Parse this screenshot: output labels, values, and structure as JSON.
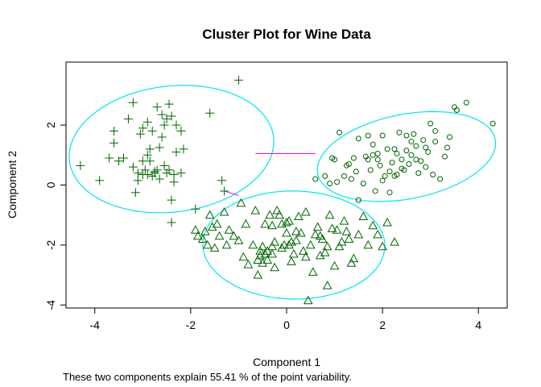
{
  "chart_data": {
    "type": "scatter",
    "title": "Cluster Plot for Wine Data",
    "xlabel": "Component 1",
    "ylabel": "Component 2",
    "footnote": "These two components explain 55.41 % of the point variability.",
    "xlim": [
      -4.6,
      4.6
    ],
    "ylim": [
      -4.1,
      4.1
    ],
    "x_ticks": [
      -4,
      -2,
      0,
      2,
      4
    ],
    "y_ticks": [
      -4,
      -2,
      0,
      2
    ],
    "grid": false,
    "legend": "none",
    "colors": {
      "points": "#006400",
      "ellipse": "#00e5ee",
      "connector": "#ff00ff"
    },
    "ellipses": [
      {
        "cx": -2.4,
        "cy": 1.2,
        "rx": 2.25,
        "ry": 2.0,
        "angle_deg": 44
      },
      {
        "cx": 2.5,
        "cy": 0.95,
        "rx": 1.97,
        "ry": 1.35,
        "angle_deg": 27
      },
      {
        "cx": 0.15,
        "cy": -2.0,
        "rx": 1.9,
        "ry": 1.8,
        "angle_deg": -8
      }
    ],
    "connectors": [
      {
        "x": [
          -0.65,
          0.6
        ],
        "y": [
          1.05,
          1.05
        ]
      },
      {
        "x": [
          -1.3,
          -1.0
        ],
        "y": [
          -0.2,
          -0.35
        ]
      }
    ],
    "series": [
      {
        "marker": "plus",
        "x": [
          -1.0,
          -4.3,
          -3.9,
          -3.7,
          -3.6,
          -3.6,
          -3.5,
          -3.4,
          -3.3,
          -3.2,
          -3.2,
          -3.1,
          -3.1,
          -3.05,
          -3.0,
          -3.0,
          -2.95,
          -2.9,
          -2.9,
          -2.85,
          -2.85,
          -2.8,
          -2.8,
          -2.75,
          -2.7,
          -2.7,
          -2.65,
          -2.65,
          -2.6,
          -2.55,
          -2.55,
          -2.5,
          -2.5,
          -2.45,
          -2.45,
          -2.4,
          -2.4,
          -2.4,
          -2.35,
          -2.35,
          -2.3,
          -2.3,
          -2.2,
          -2.2,
          -2.15,
          -1.9,
          -1.6,
          -1.35,
          -1.3,
          -2.9,
          -3.0,
          -3.15,
          -2.6,
          -2.75
        ],
        "y": [
          3.5,
          0.65,
          0.15,
          0.9,
          1.8,
          1.4,
          0.8,
          0.9,
          2.2,
          0.6,
          2.75,
          0.4,
          0.15,
          1.7,
          0.35,
          1.9,
          0.5,
          0.35,
          2.1,
          1.2,
          0.8,
          1.8,
          0.3,
          0.4,
          2.6,
          0.5,
          1.25,
          0.2,
          2.35,
          0.65,
          2.0,
          2.2,
          0.4,
          2.7,
          0.5,
          -1.25,
          -0.5,
          2.3,
          0.1,
          0.35,
          2.0,
          1.1,
          1.8,
          0.4,
          1.2,
          -0.8,
          2.4,
          0.15,
          -0.2,
          1.0,
          0.8,
          -0.25,
          1.6,
          0.45
        ]
      },
      {
        "marker": "circle",
        "x": [
          0.6,
          0.8,
          0.95,
          1.0,
          1.05,
          1.1,
          1.2,
          1.3,
          1.35,
          1.4,
          1.45,
          1.5,
          1.6,
          1.65,
          1.7,
          1.75,
          1.8,
          1.85,
          1.9,
          1.95,
          2.0,
          2.0,
          2.05,
          2.1,
          2.15,
          2.2,
          2.25,
          2.3,
          2.3,
          2.35,
          2.4,
          2.45,
          2.5,
          2.5,
          2.55,
          2.6,
          2.65,
          2.7,
          2.7,
          2.75,
          2.8,
          2.85,
          2.9,
          2.95,
          3.0,
          3.05,
          3.1,
          3.2,
          3.3,
          3.35,
          3.4,
          3.55,
          3.75,
          4.3,
          1.25,
          1.5,
          1.9,
          2.15,
          2.6,
          3.1,
          1.8,
          2.4,
          2.9,
          3.5,
          0.9,
          1.7,
          2.25
        ],
        "y": [
          0.2,
          0.3,
          0.9,
          0.85,
          0.1,
          1.75,
          0.3,
          0.7,
          0.2,
          0.9,
          0.45,
          -0.5,
          0.05,
          0.95,
          1.65,
          0.5,
          1.35,
          -0.2,
          1.05,
          0.65,
          0.15,
          1.65,
          0.3,
          1.2,
          -0.25,
          0.75,
          1.2,
          0.35,
          1.05,
          1.75,
          0.85,
          0.5,
          1.15,
          1.65,
          0.7,
          1.0,
          1.7,
          0.85,
          1.3,
          0.4,
          0.8,
          1.5,
          0.6,
          1.1,
          2.05,
          0.35,
          1.45,
          0.2,
          0.95,
          1.25,
          1.6,
          2.5,
          2.75,
          2.05,
          0.65,
          1.55,
          0.85,
          0.45,
          1.45,
          1.8,
          1.0,
          0.55,
          1.25,
          2.6,
          0.05,
          0.85,
          0.3
        ]
      },
      {
        "marker": "triangle",
        "x": [
          -1.9,
          -1.85,
          -1.75,
          -1.7,
          -1.65,
          -1.6,
          -1.55,
          -1.5,
          -1.45,
          -1.4,
          -1.3,
          -1.25,
          -1.2,
          -1.1,
          -1.0,
          -0.95,
          -0.9,
          -0.85,
          -0.8,
          -0.7,
          -0.65,
          -0.6,
          -0.55,
          -0.5,
          -0.5,
          -0.45,
          -0.45,
          -0.4,
          -0.4,
          -0.35,
          -0.3,
          -0.3,
          -0.25,
          -0.25,
          -0.2,
          -0.15,
          -0.1,
          -0.05,
          0.0,
          0.05,
          0.1,
          0.1,
          0.15,
          0.2,
          0.25,
          0.3,
          0.35,
          0.4,
          0.45,
          0.5,
          0.55,
          0.6,
          0.65,
          0.7,
          0.75,
          0.8,
          0.85,
          0.9,
          0.95,
          1.0,
          1.05,
          1.1,
          1.15,
          1.2,
          1.25,
          1.3,
          1.4,
          1.5,
          1.6,
          1.7,
          1.8,
          1.9,
          2.0,
          2.1,
          2.25,
          0.0,
          0.4,
          -0.1,
          -0.6,
          0.2,
          0.85,
          -0.55,
          0.7,
          0.05,
          -0.3,
          1.35
        ],
        "y": [
          -1.5,
          -1.7,
          -1.8,
          -1.55,
          -2.0,
          -1.0,
          -1.4,
          -2.1,
          -1.3,
          -1.7,
          -0.9,
          -2.0,
          -1.5,
          -1.7,
          -1.85,
          -0.6,
          -2.4,
          -1.3,
          -2.65,
          -2.0,
          -0.85,
          -2.5,
          -2.2,
          -2.05,
          -2.6,
          -2.3,
          -1.3,
          -2.5,
          -2.2,
          -1.0,
          -2.05,
          -2.3,
          -1.9,
          -2.75,
          -0.85,
          -1.0,
          -2.1,
          -2.0,
          -1.25,
          -1.2,
          -2.55,
          -1.9,
          -2.3,
          -1.85,
          -1.05,
          -1.6,
          -2.2,
          -2.4,
          -3.85,
          -2.0,
          -2.9,
          -1.65,
          -1.4,
          -2.35,
          -1.8,
          -2.25,
          -2.05,
          -1.0,
          -1.45,
          -2.7,
          -1.5,
          -2.05,
          -1.9,
          -1.2,
          -1.55,
          -1.8,
          -2.45,
          -1.65,
          -1.05,
          -2.0,
          -1.35,
          -1.65,
          -2.05,
          -1.25,
          -1.9,
          -1.6,
          -0.9,
          -1.3,
          -3.0,
          -1.55,
          -3.35,
          -2.35,
          -1.7,
          -2.0,
          -1.35,
          -2.6
        ]
      }
    ]
  }
}
